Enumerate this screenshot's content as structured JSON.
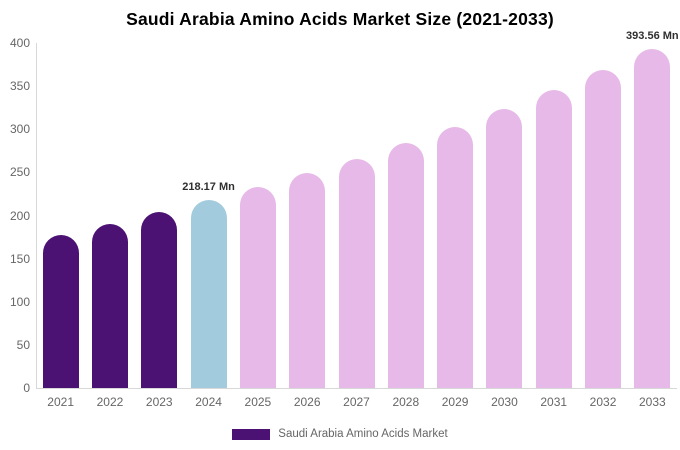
{
  "title": "Saudi Arabia Amino Acids Market Size (2021-2033)",
  "legend": {
    "label": "Saudi Arabia Amino Acids Market"
  },
  "colors": {
    "historical": "#4c1273",
    "highlight": "#a3cbde",
    "forecast": "#e7b9e8",
    "axis_line": "#d8d8d8",
    "tick_text": "#666666",
    "label_text": "#666666",
    "legend_text": "#666666",
    "annotation_text": "#2f2f2f",
    "title_text": "#000000"
  },
  "chart_data": {
    "type": "bar",
    "title": "Saudi Arabia Amino Acids Market Size (2021-2033)",
    "unit": "Mn",
    "categories": [
      "2021",
      "2022",
      "2023",
      "2024",
      "2025",
      "2026",
      "2027",
      "2028",
      "2029",
      "2030",
      "2031",
      "2032",
      "2033"
    ],
    "values": [
      177,
      190,
      204,
      218.17,
      233,
      249,
      266,
      283.6,
      302.9,
      323.4,
      345.3,
      368.7,
      393.56
    ],
    "point_color_roles": [
      "historical",
      "historical",
      "historical",
      "highlight",
      "forecast",
      "forecast",
      "forecast",
      "forecast",
      "forecast",
      "forecast",
      "forecast",
      "forecast",
      "forecast"
    ],
    "labeled_points": [
      {
        "category": "2024",
        "value": 218.17,
        "text": "218.17 Mn"
      },
      {
        "category": "2033",
        "value": 393.56,
        "text": "393.56 Mn"
      }
    ],
    "xlabel": "",
    "ylabel": "",
    "ylim": [
      0,
      400
    ],
    "yticks": [
      0,
      50,
      100,
      150,
      200,
      250,
      300,
      350,
      400
    ],
    "grid": false,
    "legend_entries": [
      "Saudi Arabia Amino Acids Market"
    ],
    "legend_position": "bottom"
  }
}
